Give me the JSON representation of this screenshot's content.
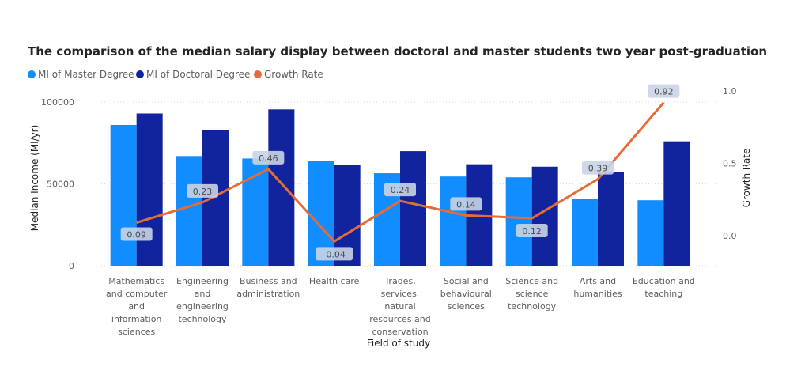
{
  "chart_data": {
    "type": "bar",
    "title": "The comparison of the median salary display between doctoral and master students two year post-graduation",
    "xlabel": "Field of study",
    "ylabel": "Median Income (Ml/yr)",
    "y2label": "Growth Rate",
    "ylim": [
      0,
      100000
    ],
    "y2lim": [
      -0.17,
      1.0
    ],
    "yticks": [
      "0",
      "50000",
      "100000"
    ],
    "y2ticks": [
      "0.0",
      "0.5",
      "1.0"
    ],
    "grid": true,
    "legend_position": "top-left",
    "categories": [
      [
        "Mathematics",
        "and computer",
        "and",
        "information",
        "sciences"
      ],
      [
        "Engineering",
        "and",
        "engineering",
        "technology"
      ],
      [
        "Business and",
        "administration"
      ],
      [
        "Health care"
      ],
      [
        "Trades,",
        "services,",
        "natural",
        "resources and",
        "conservation"
      ],
      [
        "Social and",
        "behavioural",
        "sciences"
      ],
      [
        "Science and",
        "science",
        "technology"
      ],
      [
        "Arts and",
        "humanities"
      ],
      [
        "Education and",
        "teaching"
      ]
    ],
    "series": [
      {
        "name": "MI of Master Degree",
        "type": "bar",
        "color": "#118DFF",
        "values": [
          86000,
          67000,
          65500,
          64000,
          56500,
          54500,
          54000,
          41000,
          40000
        ]
      },
      {
        "name": "MI of Doctoral Degree",
        "type": "bar",
        "color": "#12239E",
        "values": [
          93000,
          83000,
          95500,
          61500,
          70000,
          62000,
          60500,
          57000,
          76000
        ]
      },
      {
        "name": "Growth Rate",
        "type": "line",
        "axis": "secondary",
        "color": "#E66C37",
        "values": [
          0.09,
          0.23,
          0.46,
          -0.04,
          0.24,
          0.14,
          0.12,
          0.39,
          0.92
        ],
        "labels": [
          "0.09",
          "0.23",
          "0.46",
          "-0.04",
          "0.24",
          "0.14",
          "0.12",
          "0.39",
          "0.92"
        ]
      }
    ]
  }
}
